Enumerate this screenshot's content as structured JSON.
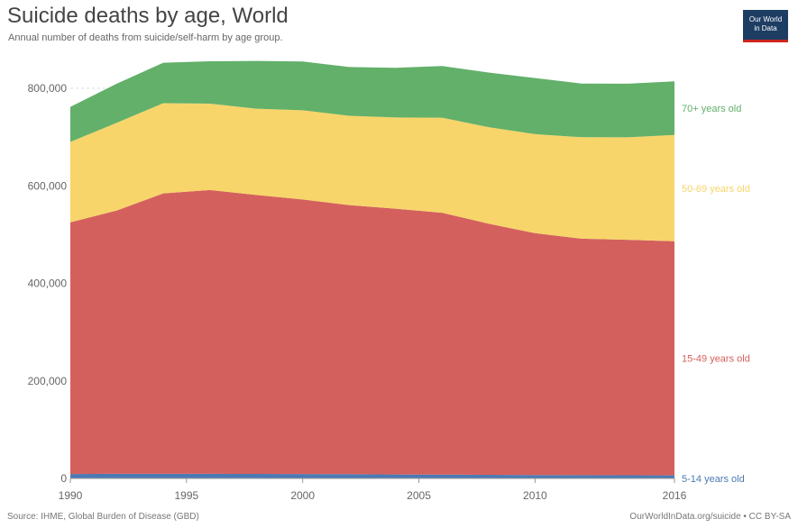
{
  "header": {
    "title": "Suicide deaths by age, World",
    "subtitle": "Annual number of deaths from suicide/self-harm by age group."
  },
  "logo": {
    "line1": "Our World",
    "line2": "in Data"
  },
  "footer": {
    "source": "Source: IHME, Global Burden of Disease (GBD)",
    "license": "OurWorldInData.org/suicide • CC BY-SA"
  },
  "chart_data": {
    "type": "area",
    "stacked": true,
    "x": [
      1990,
      1992,
      1994,
      1996,
      1998,
      2000,
      2002,
      2004,
      2006,
      2008,
      2010,
      2012,
      2014,
      2016
    ],
    "xticks": [
      1990,
      1995,
      2000,
      2005,
      2010,
      2016
    ],
    "xlim": [
      1990,
      2016
    ],
    "ylim": [
      0,
      800000
    ],
    "yticks": [
      0,
      200000,
      400000,
      600000,
      800000
    ],
    "ytick_labels": [
      "0",
      "200,000",
      "400,000",
      "600,000",
      "800,000"
    ],
    "grid": "horizontal dashed",
    "series": [
      {
        "name": "5-14 years old",
        "color": "#4a7ab5",
        "values": [
          9000,
          9500,
          9500,
          9500,
          9200,
          9000,
          8600,
          8200,
          7800,
          7400,
          7000,
          6700,
          6500,
          6300
        ]
      },
      {
        "name": "15-49 years old",
        "color": "#d4605d",
        "values": [
          516000,
          540000,
          575000,
          582000,
          572000,
          563000,
          552000,
          545000,
          537000,
          515000,
          496000,
          485000,
          483000,
          480000
        ]
      },
      {
        "name": "50-69 years old",
        "color": "#f7d56a",
        "values": [
          165000,
          180000,
          185000,
          177000,
          177000,
          183000,
          183000,
          187000,
          195000,
          198000,
          203000,
          208000,
          210000,
          218000
        ]
      },
      {
        "name": "70+ years old",
        "color": "#62b06a",
        "values": [
          72000,
          80000,
          83000,
          87000,
          98000,
          100000,
          100000,
          102000,
          106000,
          112000,
          115000,
          110000,
          110000,
          110000
        ]
      }
    ]
  }
}
